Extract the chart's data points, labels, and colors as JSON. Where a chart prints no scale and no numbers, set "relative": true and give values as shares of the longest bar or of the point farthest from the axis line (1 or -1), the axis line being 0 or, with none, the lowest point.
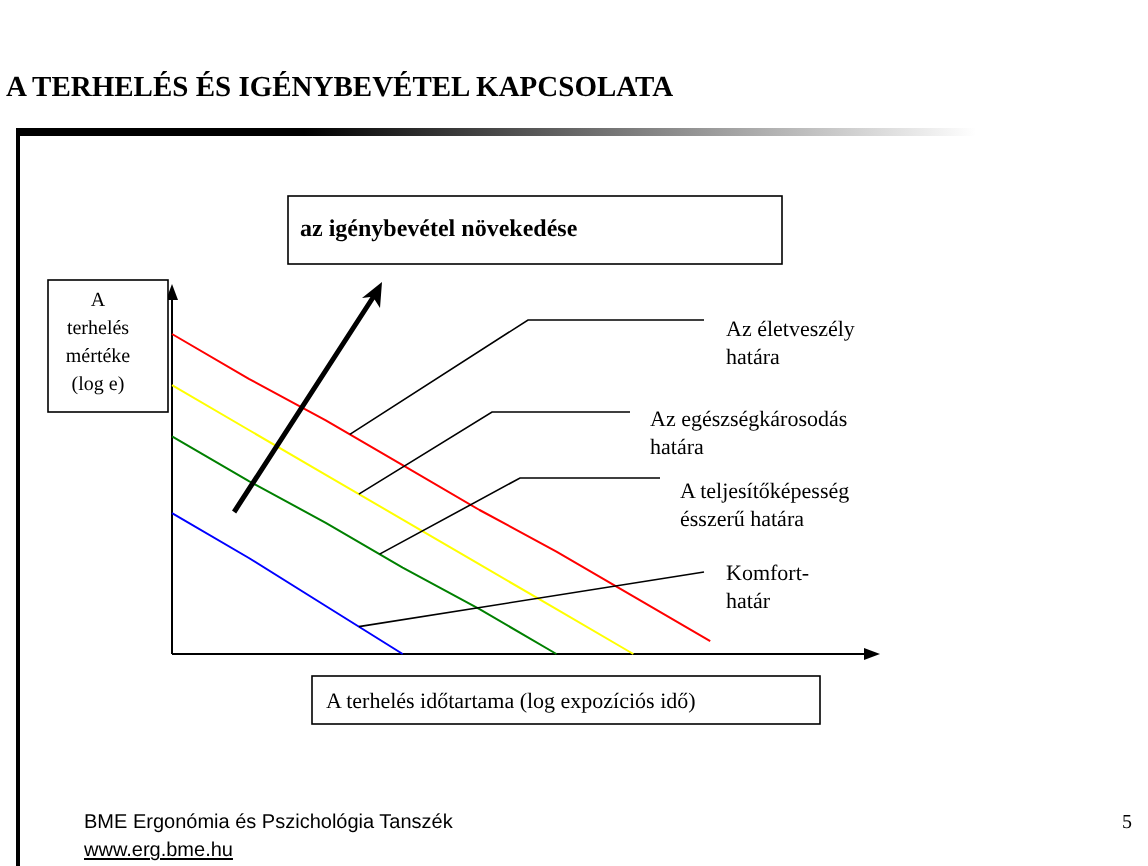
{
  "chart_data": {
    "type": "line",
    "relative": true,
    "title": "A TERHELÉS ÉS IGÉNYBEVÉTEL KAPCSOLATA",
    "xlabel": "A terhelés időtartama (log expozíciós idő)",
    "ylabel": "A terhelés mértéke (log e)",
    "categories": [
      null,
      null,
      null,
      null,
      null,
      null,
      null,
      null,
      null,
      null
    ],
    "series": [
      {
        "name": "Az életveszély határa",
        "color": "#ff0000",
        "values": [
          1,
          0.86,
          0.73,
          0.59,
          0.45,
          0.32,
          0.18,
          0.04,
          null,
          null
        ]
      },
      {
        "name": "Az egészségkárosodás határa",
        "color": "#ffff00",
        "values": [
          0.84,
          0.7,
          0.56,
          0.42,
          0.28,
          0.14,
          0,
          null,
          null,
          null
        ]
      },
      {
        "name": "A teljesítőképesség ésszerű határa",
        "color": "#008000",
        "values": [
          0.68,
          0.54,
          0.41,
          0.27,
          0.14,
          0,
          null,
          null,
          null,
          null
        ]
      },
      {
        "name": "Komfort-határ",
        "color": "#0000ff",
        "values": [
          0.44,
          0.3,
          0.15,
          0,
          null,
          null,
          null,
          null,
          null,
          null
        ]
      }
    ],
    "annotations": [
      "az igénybevétel növekedése",
      "BME Ergonómia és Pszichológia  Tanszék",
      "www.erg.bme.hu",
      "5"
    ]
  }
}
